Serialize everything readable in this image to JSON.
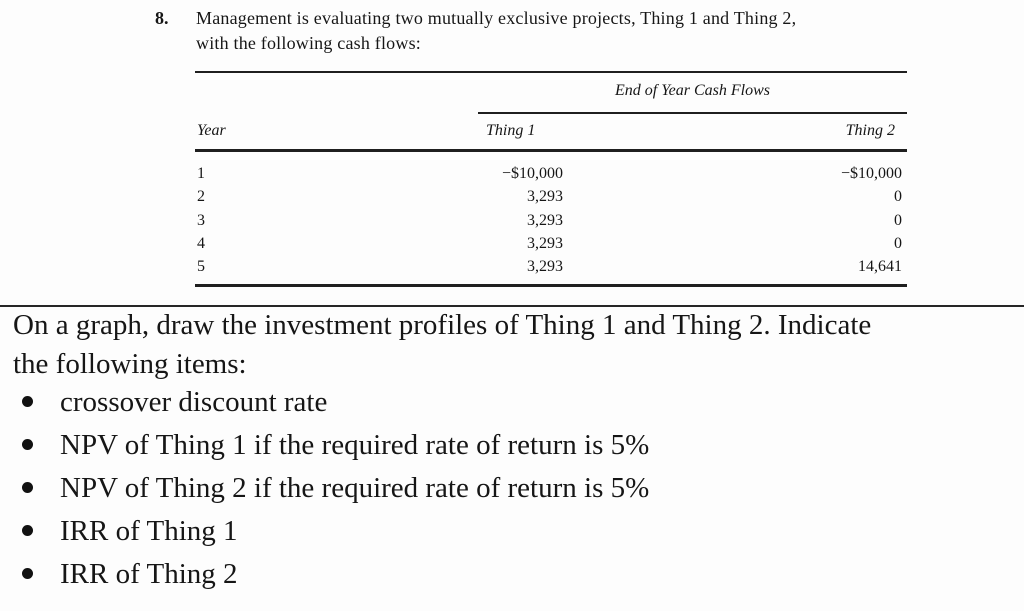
{
  "problem": {
    "number": "8.",
    "text_lines": [
      "Management is evaluating two mutually exclusive projects, Thing 1 and Thing 2,",
      "with the following cash flows:"
    ]
  },
  "table": {
    "span_header": "End of Year Cash Flows",
    "columns": [
      "Year",
      "Thing 1",
      "Thing 2"
    ],
    "rows": [
      {
        "year": "1",
        "thing1": "−$10,000",
        "thing2": "−$10,000"
      },
      {
        "year": "2",
        "thing1": "3,293",
        "thing2": "0"
      },
      {
        "year": "3",
        "thing1": "3,293",
        "thing2": "0"
      },
      {
        "year": "4",
        "thing1": "3,293",
        "thing2": "0"
      },
      {
        "year": "5",
        "thing1": "3,293",
        "thing2": "14,641"
      }
    ]
  },
  "question": {
    "text_lines": [
      "On a graph, draw the investment profiles of Thing 1 and Thing 2. Indicate",
      "the following items:"
    ],
    "bullets": [
      "crossover discount rate",
      "NPV of Thing 1 if the required rate of return is 5%",
      "NPV of Thing 2 if the required rate of return is 5%",
      "IRR of Thing 1",
      "IRR of Thing 2"
    ]
  },
  "colors": {
    "text": "#161616",
    "rule": "#1f1f1f",
    "background": "#fdfdfd"
  }
}
